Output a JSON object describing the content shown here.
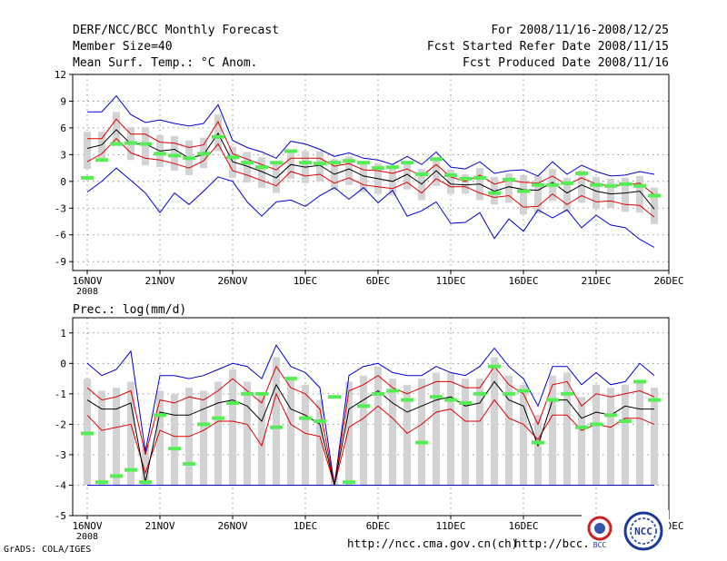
{
  "header": {
    "title": "DERF/NCC/BCC Monthly Forecast",
    "member_size": "Member Size=40",
    "variable": "Mean Surf. Temp.: °C Anom.",
    "period": "For 2008/11/16-2008/12/25",
    "started": "Fcst Started Refer Date 2008/11/15",
    "produced": "Fcst Produced Date 2008/11/16"
  },
  "footer": {
    "grads": "GrADS: COLA/IGES",
    "url1": "http://ncc.cma.gov.cn(ch)",
    "url2": "http://bcc.",
    "logo_bcc": "BCC",
    "logo_ncc": "NCC"
  },
  "colors": {
    "outer": "#0000cc",
    "inner": "#dd0000",
    "median": "#000000",
    "box": "#d3d3d3",
    "obs": "#55ee55"
  },
  "chart_data": [
    {
      "type": "box-plume",
      "title": "Mean Surf. Temp.: °C Anom.",
      "x_start_label": "2008",
      "x_ticks": [
        "16NOV",
        "21NOV",
        "26NOV",
        "1DEC",
        "6DEC",
        "11DEC",
        "16DEC",
        "21DEC",
        "26DEC"
      ],
      "x_tick_days": [
        0,
        5,
        10,
        15,
        20,
        25,
        30,
        35,
        40
      ],
      "ylim": [
        -10,
        12
      ],
      "y_ticks": [
        "12",
        "9",
        "6",
        "3",
        "0",
        "-3",
        "-6",
        "-9"
      ],
      "y_tick_values": [
        12,
        9,
        6,
        3,
        0,
        -3,
        -6,
        -9
      ],
      "days": [
        0,
        1,
        2,
        3,
        4,
        5,
        6,
        7,
        8,
        9,
        10,
        11,
        12,
        13,
        14,
        15,
        16,
        17,
        18,
        19,
        20,
        21,
        22,
        23,
        24,
        25,
        26,
        27,
        28,
        29,
        30,
        31,
        32,
        33,
        34,
        35,
        36,
        37,
        38,
        39
      ],
      "series": [
        {
          "name": "max",
          "values": [
            7.8,
            7.8,
            9.6,
            7.5,
            6.6,
            6.9,
            6.5,
            6.2,
            6.5,
            8.6,
            4.6,
            3.8,
            3.3,
            2.6,
            4.5,
            4.2,
            3.6,
            2.8,
            3.2,
            2.6,
            2.4,
            1.9,
            2.8,
            1.9,
            3.3,
            1.6,
            1.4,
            2.2,
            0.9,
            1.2,
            1.3,
            0.6,
            2.2,
            0.8,
            1.8,
            1.1,
            0.6,
            0.7,
            1.1,
            0.8
          ]
        },
        {
          "name": "upper",
          "values": [
            4.8,
            4.8,
            7.0,
            5.3,
            5.3,
            4.4,
            4.3,
            3.8,
            4.1,
            6.7,
            3.1,
            2.5,
            1.9,
            1.3,
            2.6,
            2.6,
            2.6,
            1.7,
            2.0,
            1.3,
            1.2,
            0.9,
            1.4,
            0.6,
            1.9,
            0.5,
            0.0,
            0.7,
            -0.3,
            0.1,
            -0.1,
            -0.2,
            0.6,
            -0.4,
            0.4,
            -0.3,
            -0.5,
            -0.4,
            -0.2,
            -1.5
          ]
        },
        {
          "name": "median",
          "values": [
            3.7,
            4.1,
            5.8,
            4.2,
            4.2,
            3.4,
            3.6,
            2.6,
            3.0,
            5.4,
            2.2,
            1.7,
            1.1,
            0.4,
            1.9,
            1.6,
            1.8,
            0.8,
            1.4,
            0.6,
            0.3,
            0.0,
            0.8,
            -0.3,
            1.2,
            -0.3,
            -0.4,
            -0.3,
            -1.1,
            -0.6,
            -0.9,
            -1.0,
            -0.1,
            -1.3,
            -0.4,
            -1.1,
            -1.4,
            -1.3,
            -1.1,
            -3.1
          ]
        },
        {
          "name": "lower",
          "values": [
            2.2,
            3.1,
            4.8,
            3.2,
            2.6,
            2.4,
            2.0,
            1.5,
            2.3,
            4.2,
            1.2,
            0.7,
            0.1,
            -0.5,
            1.1,
            0.6,
            0.8,
            -0.2,
            0.4,
            -0.4,
            -0.6,
            -0.8,
            -0.1,
            -1.3,
            0.3,
            -0.6,
            -0.6,
            -1.3,
            -1.8,
            -1.6,
            -2.9,
            -2.8,
            -1.4,
            -2.6,
            -1.6,
            -2.3,
            -2.2,
            -2.6,
            -2.7,
            -4.0
          ]
        },
        {
          "name": "min",
          "values": [
            -1.2,
            0.0,
            1.5,
            0.1,
            -1.3,
            -3.5,
            -1.3,
            -2.6,
            -1.1,
            0.5,
            0.0,
            -2.3,
            -3.9,
            -2.3,
            -2.1,
            -2.8,
            -1.6,
            -0.7,
            -2.0,
            -0.7,
            -2.4,
            -1.0,
            -3.9,
            -3.3,
            -2.3,
            -4.7,
            -4.6,
            -3.5,
            -6.4,
            -4.2,
            -5.6,
            -3.2,
            -4.1,
            -3.2,
            -5.2,
            -3.8,
            -4.9,
            -5.2,
            -6.5,
            -7.4
          ]
        },
        {
          "name": "observed",
          "values": [
            0.4,
            2.4,
            4.2,
            4.3,
            4.2,
            3.1,
            2.9,
            2.6,
            3.1,
            5.0,
            2.7,
            2.1,
            1.6,
            2.1,
            3.4,
            2.1,
            2.0,
            2.1,
            2.3,
            2.1,
            1.5,
            1.6,
            2.1,
            0.8,
            2.5,
            0.7,
            0.3,
            0.4,
            -1.3,
            0.2,
            -1.1,
            -0.4,
            -0.4,
            -0.2,
            0.9,
            -0.4,
            -0.5,
            -0.3,
            -0.5,
            -1.6
          ]
        }
      ]
    },
    {
      "type": "box-plume",
      "title": "Prec.: log(mm/d)",
      "x_start_label": "2008",
      "x_ticks": [
        "16NOV",
        "21NOV",
        "26NOV",
        "1DEC",
        "6DEC",
        "11DEC",
        "16DEC",
        "21DEC",
        "26DEC"
      ],
      "x_tick_days": [
        0,
        5,
        10,
        15,
        20,
        25,
        30,
        35,
        40
      ],
      "ylim": [
        -5,
        1.5
      ],
      "y_ticks": [
        "1",
        "0",
        "-1",
        "-2",
        "-3",
        "-4",
        "-5"
      ],
      "y_tick_values": [
        1,
        0,
        -1,
        -2,
        -3,
        -4,
        -5
      ],
      "days": [
        0,
        1,
        2,
        3,
        4,
        5,
        6,
        7,
        8,
        9,
        10,
        11,
        12,
        13,
        14,
        15,
        16,
        17,
        18,
        19,
        20,
        21,
        22,
        23,
        24,
        25,
        26,
        27,
        28,
        29,
        30,
        31,
        32,
        33,
        34,
        35,
        36,
        37,
        38,
        39
      ],
      "series": [
        {
          "name": "max",
          "values": [
            0.0,
            -0.4,
            -0.2,
            0.4,
            -2.9,
            -0.4,
            -0.4,
            -0.5,
            -0.4,
            -0.2,
            0.0,
            -0.1,
            -0.5,
            0.6,
            -0.1,
            -0.3,
            -0.8,
            -4.0,
            -0.4,
            -0.1,
            0.0,
            -0.3,
            -0.4,
            -0.4,
            -0.1,
            -0.3,
            -0.4,
            -0.1,
            0.5,
            -0.1,
            -0.5,
            -1.4,
            -0.1,
            -0.1,
            -0.7,
            -0.3,
            -0.7,
            -0.6,
            0.0,
            -0.4
          ]
        },
        {
          "name": "upper",
          "values": [
            -0.8,
            -1.2,
            -1.1,
            -0.9,
            -3.0,
            -1.2,
            -1.3,
            -1.1,
            -1.2,
            -0.9,
            -0.5,
            -0.9,
            -1.3,
            -0.1,
            -0.8,
            -1.0,
            -1.5,
            -4.0,
            -0.9,
            -0.7,
            -0.4,
            -0.8,
            -1.0,
            -0.8,
            -0.6,
            -0.6,
            -0.8,
            -0.8,
            -0.1,
            -0.7,
            -1.0,
            -2.0,
            -0.7,
            -0.6,
            -1.4,
            -1.0,
            -1.1,
            -1.0,
            -0.9,
            -1.1
          ]
        },
        {
          "name": "median",
          "values": [
            -1.2,
            -1.5,
            -1.5,
            -1.3,
            -3.9,
            -1.6,
            -1.7,
            -1.7,
            -1.5,
            -1.3,
            -1.2,
            -1.4,
            -1.9,
            -0.7,
            -1.5,
            -1.7,
            -2.0,
            -4.0,
            -1.5,
            -1.2,
            -0.9,
            -1.3,
            -1.6,
            -1.4,
            -1.2,
            -1.1,
            -1.4,
            -1.3,
            -0.6,
            -1.2,
            -1.4,
            -2.7,
            -1.2,
            -1.2,
            -1.8,
            -1.6,
            -1.7,
            -1.4,
            -1.5,
            -1.5
          ]
        },
        {
          "name": "lower",
          "values": [
            -1.7,
            -2.2,
            -2.1,
            -2.0,
            -3.6,
            -2.2,
            -2.4,
            -2.4,
            -2.2,
            -1.9,
            -1.9,
            -2.0,
            -2.7,
            -1.0,
            -2.0,
            -2.3,
            -2.4,
            -4.0,
            -2.1,
            -1.8,
            -1.4,
            -1.8,
            -2.3,
            -2.0,
            -1.6,
            -1.5,
            -1.9,
            -1.9,
            -1.2,
            -1.8,
            -2.0,
            -2.5,
            -1.7,
            -1.7,
            -2.2,
            -2.0,
            -2.1,
            -1.8,
            -1.8,
            -2.0
          ]
        },
        {
          "name": "min",
          "values": [
            -4.0,
            -4.0,
            -4.0,
            -4.0,
            -4.0,
            -4.0,
            -4.0,
            -4.0,
            -4.0,
            -4.0,
            -4.0,
            -4.0,
            -4.0,
            -4.0,
            -4.0,
            -4.0,
            -4.0,
            -4.0,
            -4.0,
            -4.0,
            -4.0,
            -4.0,
            -4.0,
            -4.0,
            -4.0,
            -4.0,
            -4.0,
            -4.0,
            -4.0,
            -4.0,
            -4.0,
            -4.0,
            -4.0,
            -4.0,
            -4.0,
            -4.0,
            -4.0,
            -4.0,
            -4.0,
            -4.0
          ]
        },
        {
          "name": "observed",
          "values": [
            -2.3,
            -3.9,
            -3.7,
            -3.5,
            -3.9,
            -1.7,
            -2.8,
            -3.3,
            -2.0,
            -1.8,
            -1.3,
            -1.0,
            -1.0,
            -2.1,
            -0.5,
            -1.8,
            -1.9,
            -1.1,
            -3.9,
            -1.4,
            -1.0,
            -0.9,
            -1.2,
            -2.6,
            -1.1,
            -1.2,
            -1.3,
            -1.0,
            -0.1,
            -1.0,
            -0.9,
            -2.6,
            -1.2,
            -1.0,
            -2.1,
            -2.0,
            -1.7,
            -1.9,
            -0.6,
            -1.2
          ]
        }
      ]
    }
  ]
}
